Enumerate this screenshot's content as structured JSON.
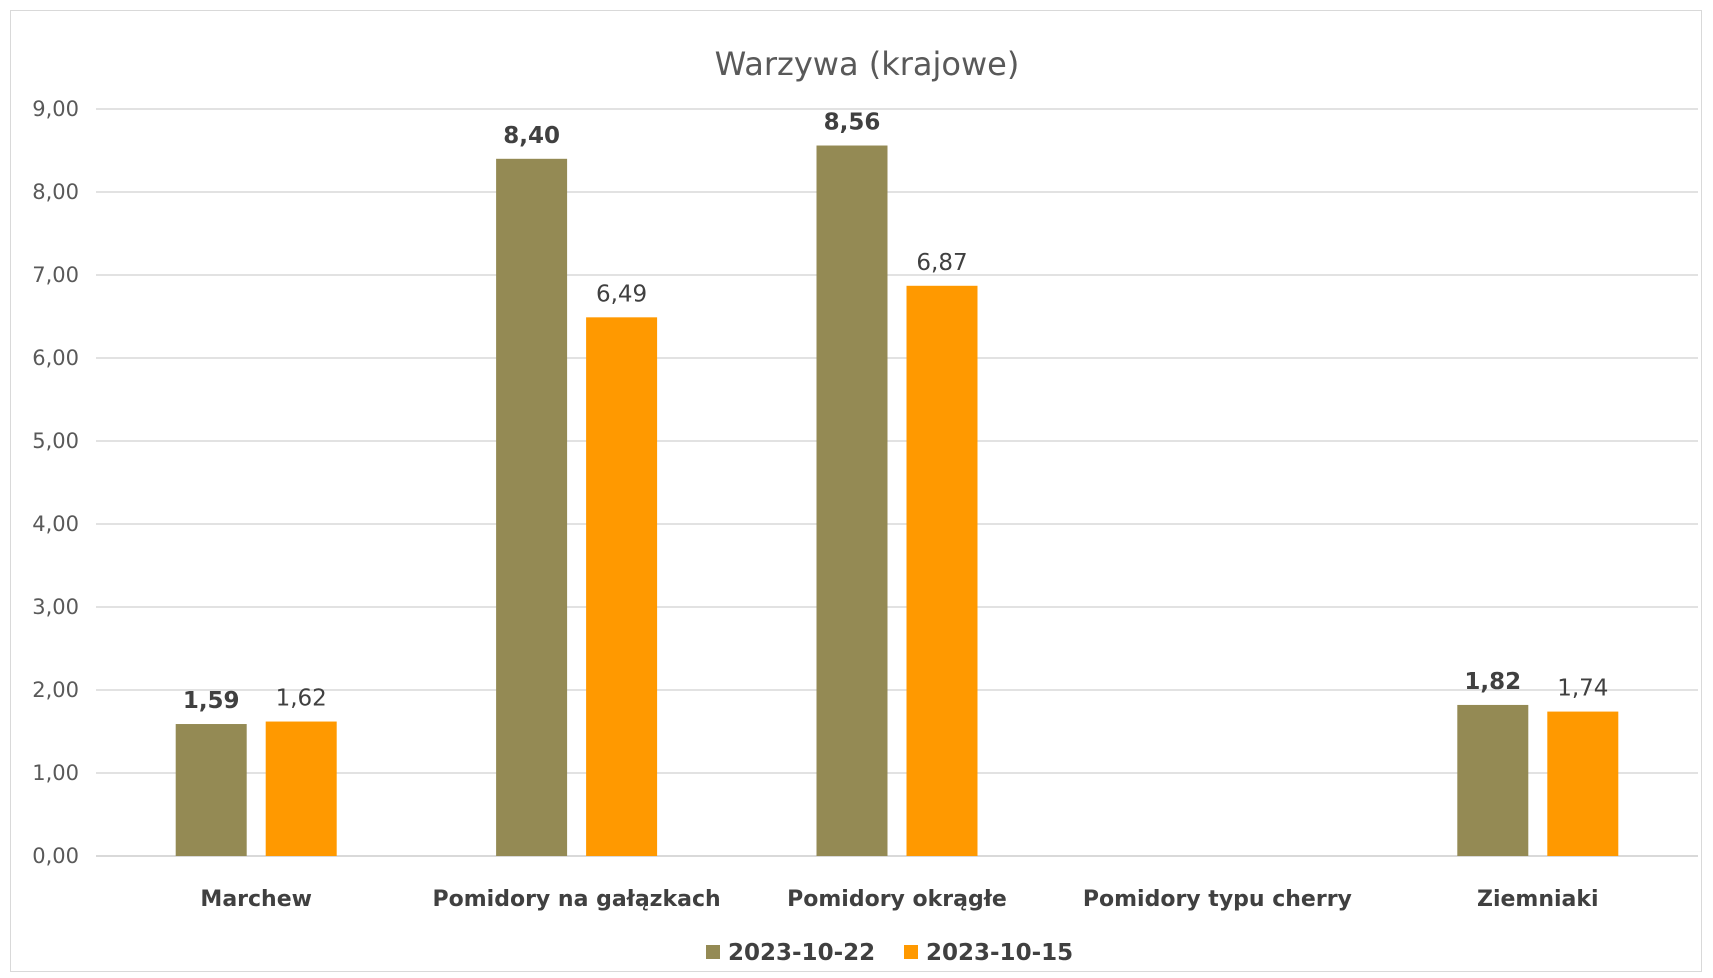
{
  "chart_data": {
    "type": "bar",
    "title": "Warzywa (krajowe)",
    "xlabel": "",
    "ylabel": "",
    "categories": [
      "Marchew",
      "Pomidory na gałązkach",
      "Pomidory okrągłe",
      "Pomidory typu cherry",
      "Ziemniaki"
    ],
    "series": [
      {
        "name": "2023-10-22",
        "color": "#948a54",
        "values": [
          1.59,
          8.4,
          8.56,
          null,
          1.82
        ],
        "labels": [
          "1,59",
          "8,40",
          "8,56",
          "",
          "1,82"
        ],
        "label_bold": true
      },
      {
        "name": "2023-10-15",
        "color": "#ff9900",
        "values": [
          1.62,
          6.49,
          6.87,
          null,
          1.74
        ],
        "labels": [
          "1,62",
          "6,49",
          "6,87",
          "",
          "1,74"
        ],
        "label_bold": false
      }
    ],
    "ylim": [
      0,
      9
    ],
    "yticks": [
      0,
      1,
      2,
      3,
      4,
      5,
      6,
      7,
      8,
      9
    ],
    "ytick_labels": [
      "0,00",
      "1,00",
      "2,00",
      "3,00",
      "4,00",
      "5,00",
      "6,00",
      "7,00",
      "8,00",
      "9,00"
    ],
    "grid": true,
    "gridline_color": "#d9d9d9",
    "legend_position": "bottom"
  }
}
